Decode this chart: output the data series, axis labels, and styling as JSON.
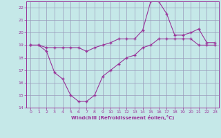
{
  "xlabel": "Windchill (Refroidissement éolien,°C)",
  "bg_color": "#c5e8e8",
  "grid_color": "#9999bb",
  "line_color": "#993399",
  "xlim": [
    -0.5,
    23.5
  ],
  "ylim": [
    14,
    22.5
  ],
  "xticks": [
    0,
    1,
    2,
    3,
    4,
    5,
    6,
    7,
    8,
    9,
    10,
    11,
    12,
    13,
    14,
    15,
    16,
    17,
    18,
    19,
    20,
    21,
    22,
    23
  ],
  "yticks": [
    14,
    15,
    16,
    17,
    18,
    19,
    20,
    21,
    22
  ],
  "line1_x": [
    0,
    1,
    2,
    3,
    4,
    5,
    6,
    7,
    8,
    9,
    10,
    11,
    12,
    13,
    14,
    15,
    16,
    17,
    18,
    19,
    20,
    21,
    22,
    23
  ],
  "line1_y": [
    19,
    19,
    18.8,
    18.8,
    18.8,
    18.8,
    18.8,
    18.5,
    18.8,
    19,
    19.2,
    19.5,
    19.5,
    19.5,
    20.2,
    22.5,
    22.5,
    21.5,
    19.8,
    19.8,
    20.0,
    20.3,
    19.2,
    19.2
  ],
  "line2_x": [
    0,
    1,
    2,
    3,
    4,
    5,
    6,
    7,
    8,
    9,
    10,
    11,
    12,
    13,
    14,
    15,
    16,
    17,
    18,
    19,
    20,
    21,
    22,
    23
  ],
  "line2_y": [
    19,
    19,
    18.5,
    16.8,
    16.3,
    15.0,
    14.5,
    14.5,
    15.0,
    16.5,
    17.0,
    17.5,
    18.0,
    18.2,
    18.8,
    19.0,
    19.5,
    19.5,
    19.5,
    19.5,
    19.5,
    19.0,
    19.0,
    19.0
  ]
}
